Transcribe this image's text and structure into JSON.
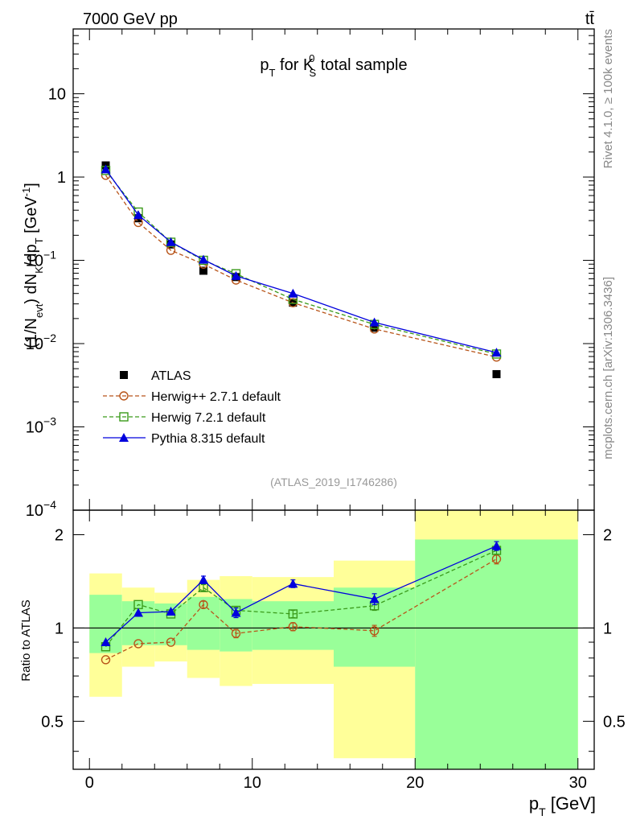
{
  "header": {
    "left": "7000 GeV pp",
    "right": "tt̄"
  },
  "side": {
    "top": "Rivet 4.1.0, ≥ 100k events",
    "bottom": "mcplots.cern.ch [arXiv:1306.3436]"
  },
  "colors": {
    "atlas": "#000000",
    "herwigpp": "#b8551a",
    "herwig7": "#3a9a1a",
    "pythia": "#0000dd",
    "band_outer": "#ffff99",
    "band_inner": "#99ff99"
  },
  "chart_data": [
    {
      "type": "scatter",
      "title": "p_T for K_S^0 total sample",
      "title_parts": {
        "p": "p",
        "T": "T",
        "mid": " for K",
        "S": "S",
        "zero": "0",
        "rest": " total sample"
      },
      "ylabel": "(1/N_evt) dN_K/dp_T [GeV^-1]",
      "ylabel_parts": {
        "a": "(1/N",
        "evt": "evt",
        "b": ") dN",
        "K": "K",
        "c": "/dp",
        "T": "T",
        "d": " [GeV",
        "exp": "-1",
        "e": "]"
      },
      "yscale": "log",
      "ylim": [
        0.0001,
        60
      ],
      "xlim": [
        -1,
        31
      ],
      "y_ticks": [
        {
          "value": 10,
          "label": "10"
        },
        {
          "value": 1,
          "label": "1"
        },
        {
          "value": 0.1,
          "label": "10",
          "exp": "−1"
        },
        {
          "value": 0.01,
          "label": "10",
          "exp": "−2"
        },
        {
          "value": 0.001,
          "label": "10",
          "exp": "−3"
        },
        {
          "value": 0.0001,
          "label": "10",
          "exp": "−4"
        }
      ],
      "annotation": "(ATLAS_2019_I1746286)",
      "legend_position": "lower-left",
      "x": [
        1,
        3,
        5,
        7,
        9,
        12.5,
        17.5,
        25
      ],
      "series": [
        {
          "name": "ATLAS",
          "marker": "square-filled",
          "values": [
            1.38,
            0.32,
            0.155,
            0.075,
            0.063,
            0.031,
            0.0155,
            0.0043
          ]
        },
        {
          "name": "Herwig++ 2.7.1 default",
          "marker": "circle-open",
          "line": "dashed",
          "values": [
            1.05,
            0.285,
            0.132,
            0.09,
            0.058,
            0.031,
            0.015,
            0.0069
          ]
        },
        {
          "name": "Herwig 7.2.1 default",
          "marker": "square-open",
          "line": "dashed",
          "values": [
            1.2,
            0.38,
            0.165,
            0.1,
            0.069,
            0.034,
            0.017,
            0.0075
          ]
        },
        {
          "name": "Pythia 8.315 default",
          "marker": "triangle-filled",
          "line": "solid",
          "values": [
            1.24,
            0.35,
            0.166,
            0.102,
            0.065,
            0.04,
            0.018,
            0.0078
          ]
        }
      ]
    },
    {
      "type": "scatter",
      "ylabel": "Ratio to ATLAS",
      "xlabel": "p_T [GeV]",
      "xlabel_parts": {
        "p": "p",
        "T": "T",
        "unit": " [GeV]"
      },
      "yscale": "log",
      "ylim": [
        0.35,
        2.4
      ],
      "xlim": [
        -1,
        31
      ],
      "reference_line": 1,
      "x_ticks": [
        0,
        10,
        20,
        30
      ],
      "y_ticks": [
        {
          "value": 0.5,
          "label": "0.5"
        },
        {
          "value": 1,
          "label": "1"
        },
        {
          "value": 2,
          "label": "2"
        }
      ],
      "bins": [
        {
          "x": [
            0,
            2
          ],
          "outer": [
            0.6,
            1.5
          ],
          "inner": [
            0.83,
            1.28
          ]
        },
        {
          "x": [
            2,
            4
          ],
          "outer": [
            0.75,
            1.35
          ],
          "inner": [
            0.88,
            1.22
          ]
        },
        {
          "x": [
            4,
            6
          ],
          "outer": [
            0.78,
            1.3
          ],
          "inner": [
            0.88,
            1.2
          ]
        },
        {
          "x": [
            6,
            8
          ],
          "outer": [
            0.69,
            1.43
          ],
          "inner": [
            0.85,
            1.26
          ]
        },
        {
          "x": [
            8,
            10
          ],
          "outer": [
            0.65,
            1.47
          ],
          "inner": [
            0.84,
            1.24
          ]
        },
        {
          "x": [
            10,
            15
          ],
          "outer": [
            0.66,
            1.46
          ],
          "inner": [
            0.85,
            1.22
          ]
        },
        {
          "x": [
            15,
            20
          ],
          "outer": [
            0.38,
            1.65
          ],
          "inner": [
            0.75,
            1.35
          ]
        },
        {
          "x": [
            20,
            30
          ],
          "outer": [
            0.35,
            2.4
          ],
          "inner": [
            0.35,
            1.93
          ]
        }
      ],
      "x": [
        1,
        3,
        5,
        7,
        9,
        12.5,
        17.5,
        25
      ],
      "series": [
        {
          "name": "Herwig++ 2.7.1 default",
          "marker": "circle-open",
          "line": "dashed",
          "values": [
            0.79,
            0.89,
            0.9,
            1.19,
            0.96,
            1.01,
            0.98,
            1.67
          ],
          "errors": [
            0,
            0,
            0,
            0.03,
            0.03,
            0.03,
            0.04,
            0.06
          ]
        },
        {
          "name": "Herwig 7.2.1 default",
          "marker": "square-open",
          "line": "dashed",
          "values": [
            0.87,
            1.19,
            1.11,
            1.35,
            1.14,
            1.11,
            1.18,
            1.78
          ],
          "errors": [
            0,
            0,
            0,
            0.03,
            0.03,
            0.03,
            0.04,
            0.05
          ]
        },
        {
          "name": "Pythia 8.315 default",
          "marker": "triangle-filled",
          "line": "solid",
          "values": [
            0.9,
            1.12,
            1.13,
            1.43,
            1.12,
            1.39,
            1.24,
            1.84
          ],
          "errors": [
            0,
            0,
            0,
            0.04,
            0.04,
            0.04,
            0.05,
            0.06
          ]
        }
      ]
    }
  ]
}
